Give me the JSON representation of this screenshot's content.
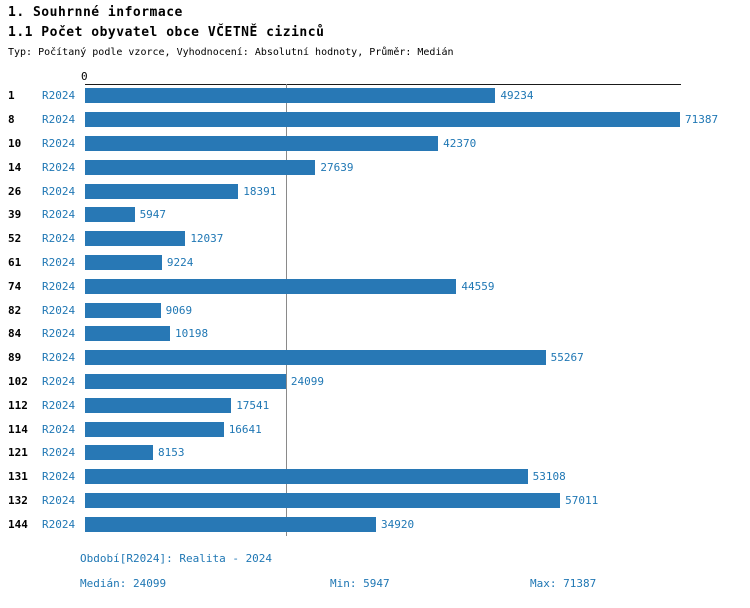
{
  "header": {
    "title": "1. Souhrnné informace",
    "subtitle": "1.1 Počet obyvatel obce VČETNĚ cizinců",
    "meta": "Typ: Počítaný podle vzorce, Vyhodnocení: Absolutní hodnoty, Průměr: Medián"
  },
  "chart_data": {
    "type": "bar",
    "orientation": "horizontal",
    "title": "1.1 Počet obyvatel obce VČETNĚ cizinců",
    "series_label": "R2024",
    "categories": [
      "1",
      "8",
      "10",
      "14",
      "26",
      "39",
      "52",
      "61",
      "74",
      "82",
      "84",
      "89",
      "102",
      "112",
      "114",
      "121",
      "131",
      "132",
      "144"
    ],
    "values": [
      49234,
      71387,
      42370,
      27639,
      18391,
      5947,
      12037,
      9224,
      44559,
      9069,
      10198,
      55267,
      24099,
      17541,
      16641,
      8153,
      53108,
      57011,
      34920
    ],
    "xlim": [
      0,
      71387
    ],
    "x_axis_zero_label": "0",
    "median_line_value": 24099,
    "median": 24099,
    "min": 5947,
    "max": 71387,
    "bar_color": "#2878b5",
    "value_color": "#1f77b4",
    "legend_position": "none",
    "grid": false
  },
  "footer": {
    "period": "Období[R2024]: Realita - 2024",
    "median": "Medián: 24099",
    "min": "Min: 5947",
    "max": "Max: 71387"
  }
}
